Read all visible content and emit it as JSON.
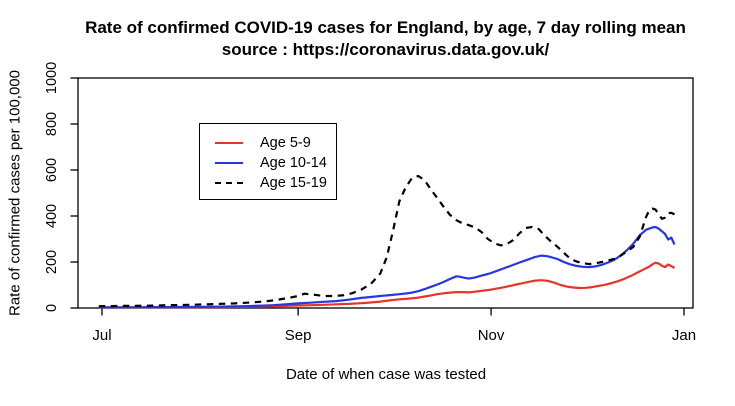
{
  "chart_data": {
    "type": "line",
    "title_line1": "Rate of confirmed COVID-19 cases for England, by age, 7 day rolling mean",
    "title_line2": "source : https://coronavirus.data.gov.uk/",
    "xlabel": "Date of when case was tested",
    "ylabel": "Rate of confirmed cases per 100,000",
    "x_axis_unit": "days since Jul 1",
    "x_ticks": [
      {
        "label": "Jul",
        "day": 0
      },
      {
        "label": "Sep",
        "day": 62
      },
      {
        "label": "Nov",
        "day": 123
      },
      {
        "label": "Jan",
        "day": 184
      }
    ],
    "y_ticks": [
      0,
      200,
      400,
      600,
      800,
      1000
    ],
    "ylim": [
      0,
      1000
    ],
    "xlim_days": [
      -7.6,
      187
    ],
    "grid": false,
    "legend_position": "upper-left-inside",
    "legend": {
      "entries": [
        {
          "label": "Age 5-9",
          "color": "#e73429",
          "style": "solid"
        },
        {
          "label": "Age 10-14",
          "color": "#2636e4",
          "style": "solid"
        },
        {
          "label": "Age 15-19",
          "color": "#000000",
          "style": "dashed"
        }
      ]
    },
    "series": [
      {
        "name": "Age 5-9",
        "color": "#e73429",
        "style": "solid",
        "points": [
          [
            -1,
            2
          ],
          [
            10,
            2
          ],
          [
            20,
            3
          ],
          [
            31,
            3
          ],
          [
            38,
            4
          ],
          [
            45,
            5
          ],
          [
            50,
            6
          ],
          [
            54,
            7
          ],
          [
            58,
            9
          ],
          [
            62,
            11
          ],
          [
            66,
            12
          ],
          [
            70,
            14
          ],
          [
            74,
            16
          ],
          [
            78,
            18
          ],
          [
            82,
            21
          ],
          [
            85,
            24
          ],
          [
            88,
            28
          ],
          [
            91,
            33
          ],
          [
            94,
            38
          ],
          [
            97,
            41
          ],
          [
            100,
            45
          ],
          [
            102,
            50
          ],
          [
            104,
            55
          ],
          [
            106,
            60
          ],
          [
            108,
            64
          ],
          [
            110,
            67
          ],
          [
            112,
            69
          ],
          [
            114,
            69
          ],
          [
            116,
            68
          ],
          [
            118,
            71
          ],
          [
            120,
            75
          ],
          [
            123,
            80
          ],
          [
            125,
            85
          ],
          [
            127,
            90
          ],
          [
            129,
            96
          ],
          [
            131,
            102
          ],
          [
            133,
            108
          ],
          [
            135,
            114
          ],
          [
            137,
            119
          ],
          [
            139,
            121
          ],
          [
            141,
            118
          ],
          [
            143,
            110
          ],
          [
            145,
            100
          ],
          [
            147,
            93
          ],
          [
            149,
            89
          ],
          [
            151,
            87
          ],
          [
            153,
            88
          ],
          [
            155,
            91
          ],
          [
            157,
            96
          ],
          [
            159,
            101
          ],
          [
            161,
            108
          ],
          [
            163,
            116
          ],
          [
            165,
            126
          ],
          [
            167,
            138
          ],
          [
            169,
            152
          ],
          [
            171,
            166
          ],
          [
            173,
            180
          ],
          [
            174,
            190
          ],
          [
            175,
            197
          ],
          [
            176,
            193
          ],
          [
            177,
            184
          ],
          [
            178,
            178
          ],
          [
            179,
            189
          ],
          [
            180,
            182
          ],
          [
            181,
            174
          ]
        ]
      },
      {
        "name": "Age 10-14",
        "color": "#2636e4",
        "style": "solid",
        "points": [
          [
            -1,
            3
          ],
          [
            10,
            3
          ],
          [
            20,
            4
          ],
          [
            31,
            5
          ],
          [
            38,
            6
          ],
          [
            45,
            8
          ],
          [
            50,
            10
          ],
          [
            54,
            12
          ],
          [
            58,
            16
          ],
          [
            62,
            20
          ],
          [
            66,
            23
          ],
          [
            70,
            27
          ],
          [
            74,
            30
          ],
          [
            78,
            36
          ],
          [
            82,
            44
          ],
          [
            85,
            48
          ],
          [
            88,
            52
          ],
          [
            91,
            56
          ],
          [
            94,
            60
          ],
          [
            96,
            63
          ],
          [
            98,
            67
          ],
          [
            100,
            73
          ],
          [
            102,
            82
          ],
          [
            104,
            92
          ],
          [
            106,
            102
          ],
          [
            108,
            113
          ],
          [
            110,
            126
          ],
          [
            112,
            138
          ],
          [
            113,
            136
          ],
          [
            115,
            130
          ],
          [
            116,
            128
          ],
          [
            118,
            133
          ],
          [
            120,
            141
          ],
          [
            122,
            148
          ],
          [
            123,
            152
          ],
          [
            125,
            162
          ],
          [
            127,
            172
          ],
          [
            129,
            182
          ],
          [
            132,
            198
          ],
          [
            135,
            212
          ],
          [
            137,
            222
          ],
          [
            139,
            228
          ],
          [
            141,
            225
          ],
          [
            144,
            213
          ],
          [
            146,
            200
          ],
          [
            148,
            190
          ],
          [
            150,
            183
          ],
          [
            152,
            179
          ],
          [
            154,
            178
          ],
          [
            156,
            181
          ],
          [
            158,
            188
          ],
          [
            160,
            198
          ],
          [
            162,
            210
          ],
          [
            164,
            228
          ],
          [
            166,
            252
          ],
          [
            168,
            280
          ],
          [
            170,
            316
          ],
          [
            172,
            340
          ],
          [
            174,
            350
          ],
          [
            175,
            352
          ],
          [
            176,
            345
          ],
          [
            178,
            322
          ],
          [
            179,
            298
          ],
          [
            180,
            306
          ],
          [
            181,
            276
          ]
        ]
      },
      {
        "name": "Age 15-19",
        "color": "#000000",
        "style": "dashed",
        "points": [
          [
            -1,
            8
          ],
          [
            7,
            9
          ],
          [
            14,
            10
          ],
          [
            21,
            12
          ],
          [
            28,
            14
          ],
          [
            35,
            17
          ],
          [
            42,
            20
          ],
          [
            47,
            24
          ],
          [
            52,
            29
          ],
          [
            56,
            37
          ],
          [
            59,
            44
          ],
          [
            62,
            52
          ],
          [
            64,
            62
          ],
          [
            67,
            58
          ],
          [
            70,
            52
          ],
          [
            73,
            52
          ],
          [
            76,
            55
          ],
          [
            79,
            64
          ],
          [
            82,
            80
          ],
          [
            85,
            105
          ],
          [
            88,
            150
          ],
          [
            90,
            220
          ],
          [
            92,
            335
          ],
          [
            94,
            463
          ],
          [
            96,
            525
          ],
          [
            98,
            565
          ],
          [
            100,
            574
          ],
          [
            102,
            555
          ],
          [
            104,
            515
          ],
          [
            106,
            478
          ],
          [
            108,
            440
          ],
          [
            110,
            405
          ],
          [
            112,
            382
          ],
          [
            114,
            368
          ],
          [
            116,
            360
          ],
          [
            118,
            350
          ],
          [
            120,
            330
          ],
          [
            122,
            300
          ],
          [
            124,
            282
          ],
          [
            126,
            272
          ],
          [
            128,
            278
          ],
          [
            130,
            295
          ],
          [
            132,
            325
          ],
          [
            134,
            348
          ],
          [
            136,
            352
          ],
          [
            138,
            344
          ],
          [
            140,
            315
          ],
          [
            142,
            288
          ],
          [
            144,
            266
          ],
          [
            146,
            240
          ],
          [
            148,
            215
          ],
          [
            150,
            202
          ],
          [
            152,
            195
          ],
          [
            154,
            191
          ],
          [
            156,
            194
          ],
          [
            158,
            200
          ],
          [
            160,
            206
          ],
          [
            162,
            214
          ],
          [
            164,
            228
          ],
          [
            166,
            246
          ],
          [
            168,
            266
          ],
          [
            170,
            310
          ],
          [
            172,
            395
          ],
          [
            173,
            425
          ],
          [
            174,
            432
          ],
          [
            175,
            428
          ],
          [
            176,
            408
          ],
          [
            177,
            388
          ],
          [
            178,
            393
          ],
          [
            179,
            412
          ],
          [
            180,
            414
          ],
          [
            181,
            407
          ]
        ]
      }
    ]
  }
}
